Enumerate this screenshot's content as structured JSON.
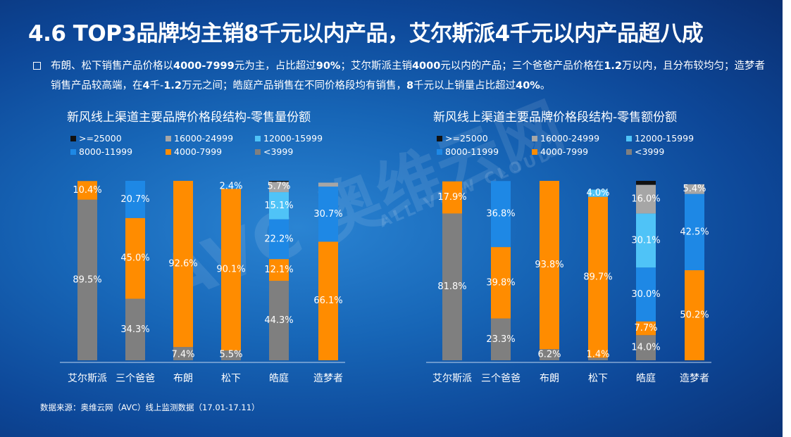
{
  "title": "4.6 TOP3品牌均主销8千元以内产品，艾尔斯派4千元以内产品超八成",
  "summary": {
    "p1": "布朗、松下销售产品价格以",
    "b1": "4000-7999",
    "p2": "元为主，占比超过",
    "b2": "90%",
    "p3": "；艾尔斯派主销",
    "b3": "4000",
    "p4": "元以内的产品；三个爸爸产品价格在",
    "b4": "1.2",
    "p5": "万以内，且分布较均匀；造梦者销售产品较高端，在",
    "b5": "4",
    "p6": "千-",
    "b6": "1.2",
    "p7": "万元之间；皓庭产品销售在不同价格段均有销售，",
    "b7": "8",
    "p8": "千元以上销量占比超过",
    "b8": "40%",
    "p9": "。"
  },
  "source": "数据来源：奥维云网（AVC）线上监测数据（17.01-17.11）",
  "watermark": {
    "text": "AVC 奥维云网",
    "sub": "ALL VIEW CLOUD"
  },
  "colors": {
    ">=25000": "#111111",
    "16000-24999": "#a6a6a6",
    "12000-15999": "#4fc3f7",
    "8000-11999": "#1e88e5",
    "4000-7999": "#ff8c00",
    "<3999": "#7f7f7f"
  },
  "chart_data": [
    {
      "type": "bar",
      "stacked": true,
      "title": "新风线上渠道主要品牌价格段结构-零售量份额",
      "categories": [
        "艾尔斯派",
        "三个爸爸",
        "布朗",
        "松下",
        "皓庭",
        "造梦者"
      ],
      "legend": [
        ">=25000",
        "16000-24999",
        "12000-15999",
        "8000-11999",
        "4000-7999",
        "<3999"
      ],
      "series": [
        {
          "name": "<3999",
          "values": [
            89.5,
            34.3,
            7.4,
            5.5,
            44.3,
            0
          ],
          "labels": [
            "89.5%",
            "34.3%",
            "7.4%",
            "5.5%",
            "44.3%",
            ""
          ]
        },
        {
          "name": "4000-7999",
          "values": [
            10.4,
            45.0,
            92.6,
            90.1,
            12.1,
            66.1
          ],
          "labels": [
            "10.4%",
            "45.0%",
            "92.6%",
            "90.1%",
            "12.1%",
            "66.1%"
          ]
        },
        {
          "name": "8000-11999",
          "values": [
            0,
            20.7,
            0,
            2.4,
            22.2,
            30.7
          ],
          "labels": [
            "",
            "20.7%",
            "",
            "2.4%",
            "22.2%",
            "30.7%"
          ]
        },
        {
          "name": "12000-15999",
          "values": [
            0,
            0,
            0,
            0,
            15.1,
            0
          ],
          "labels": [
            "",
            "",
            "",
            "",
            "15.1%",
            ""
          ]
        },
        {
          "name": "16000-24999",
          "values": [
            0,
            0,
            0,
            0,
            5.7,
            2.2
          ],
          "labels": [
            "",
            "",
            "",
            "",
            "5.7%",
            ""
          ]
        },
        {
          "name": ">=25000",
          "values": [
            0,
            0,
            0,
            0,
            0.6,
            0
          ],
          "labels": [
            "",
            "",
            "",
            "",
            "",
            ""
          ]
        }
      ],
      "ylim": [
        0,
        100
      ]
    },
    {
      "type": "bar",
      "stacked": true,
      "title": "新风线上渠道主要品牌价格段结构-零售额份额",
      "categories": [
        "艾尔斯派",
        "三个爸爸",
        "布朗",
        "松下",
        "皓庭",
        "造梦者"
      ],
      "legend": [
        ">=25000",
        "16000-24999",
        "12000-15999",
        "8000-11999",
        "4000-7999",
        "<3999"
      ],
      "series": [
        {
          "name": "<3999",
          "values": [
            81.8,
            23.3,
            6.2,
            1.4,
            14.0,
            0
          ],
          "labels": [
            "81.8%",
            "23.3%",
            "6.2%",
            "1.4%",
            "14.0%",
            ""
          ]
        },
        {
          "name": "4000-7999",
          "values": [
            17.9,
            39.8,
            93.8,
            89.7,
            7.7,
            50.2
          ],
          "labels": [
            "17.9%",
            "39.8%",
            "93.8%",
            "89.7%",
            "7.7%",
            "50.2%"
          ]
        },
        {
          "name": "8000-11999",
          "values": [
            0,
            36.8,
            0,
            0,
            30.0,
            42.5
          ],
          "labels": [
            "",
            "36.8%",
            "",
            "",
            "30.0%",
            "42.5%"
          ]
        },
        {
          "name": "12000-15999",
          "values": [
            0,
            0,
            0,
            4.0,
            30.1,
            0
          ],
          "labels": [
            "",
            "",
            "",
            "4.0%",
            "30.1%",
            ""
          ]
        },
        {
          "name": "16000-24999",
          "values": [
            0,
            0,
            0,
            0,
            16.0,
            5.4
          ],
          "labels": [
            "",
            "",
            "",
            "",
            "16.0%",
            "5.4%"
          ]
        },
        {
          "name": ">=25000",
          "values": [
            0,
            0,
            0,
            0,
            2.2,
            0
          ],
          "labels": [
            "",
            "",
            "",
            "",
            "",
            ""
          ]
        }
      ],
      "ylim": [
        0,
        100
      ]
    }
  ]
}
